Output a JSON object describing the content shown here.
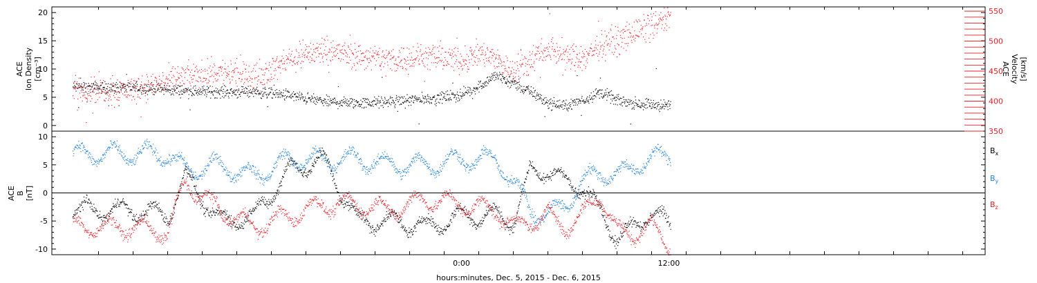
{
  "colors": {
    "black": "#000000",
    "red": "#e8202a",
    "blue": "#1f7fd8"
  },
  "chart_data": [
    {
      "type": "scatter",
      "panel": "top",
      "ylabel_lines": [
        "ACE",
        "Ion Density",
        "[cm⁻³]"
      ],
      "right_label_lines": [
        "ACE",
        "Velocity",
        "[km/s]"
      ],
      "left_ticks": [
        "0",
        "5",
        "10",
        "15",
        "20"
      ],
      "right_ticks": [
        "350",
        "400",
        "450",
        "500",
        "550"
      ],
      "ylim_left": [
        -1,
        21
      ],
      "ylim_right": [
        350,
        557
      ],
      "series": [
        {
          "axis": "left",
          "color": "#000000",
          "trend": [
            [
              -19,
              6.8
            ],
            [
              -16,
              6.2
            ],
            [
              -14,
              6
            ],
            [
              -12,
              6
            ],
            [
              -10,
              5.4
            ],
            [
              -8,
              4.3
            ],
            [
              -6,
              4.0
            ],
            [
              -4,
              4.3
            ],
            [
              -2,
              4.8
            ],
            [
              0,
              5.5
            ],
            [
              1,
              7.0
            ],
            [
              2,
              9.0
            ],
            [
              3,
              7.5
            ],
            [
              4,
              6.0
            ],
            [
              5,
              4.0
            ],
            [
              6,
              3.5
            ],
            [
              7,
              4.5
            ],
            [
              8,
              6.0
            ],
            [
              9,
              4.5
            ],
            [
              10,
              4.0
            ],
            [
              11,
              3.8
            ],
            [
              12,
              3.4
            ]
          ]
        },
        {
          "axis": "right",
          "color": "#e8202a",
          "trend": [
            [
              -19,
              420
            ],
            [
              -16,
              440
            ],
            [
              -14,
              450
            ],
            [
              -12,
              440
            ],
            [
              -10,
              470
            ],
            [
              -8,
              485
            ],
            [
              -6,
              475
            ],
            [
              -4,
              470
            ],
            [
              -2,
              475
            ],
            [
              0,
              470
            ],
            [
              1,
              480
            ],
            [
              2,
              470
            ],
            [
              3,
              450
            ],
            [
              4,
              470
            ],
            [
              5,
              490
            ],
            [
              6,
              475
            ],
            [
              7,
              470
            ],
            [
              8,
              495
            ],
            [
              9,
              500
            ],
            [
              10,
              515
            ],
            [
              11,
              525
            ],
            [
              12,
              540
            ]
          ]
        }
      ]
    },
    {
      "type": "scatter",
      "panel": "bottom",
      "ylabel_lines": [
        "ACE",
        "B",
        "[nT]"
      ],
      "left_ticks": [
        "-10",
        "-5",
        "0",
        "5",
        "10"
      ],
      "ylim": [
        -11,
        11
      ],
      "zero_line": true,
      "legend": [
        {
          "label": "B",
          "sub": "x",
          "color": "#000000"
        },
        {
          "label": "B",
          "sub": "y",
          "color": "#1f7fd8"
        },
        {
          "label": "B",
          "sub": "z",
          "color": "#e8202a"
        }
      ],
      "series": [
        {
          "name": "Bx",
          "color": "#000000",
          "trend": [
            [
              -19,
              -3
            ],
            [
              -17,
              -4
            ],
            [
              -16,
              3
            ],
            [
              -14,
              -5
            ],
            [
              -12,
              -4
            ],
            [
              -10,
              4
            ],
            [
              -8,
              6
            ],
            [
              -6,
              -5
            ],
            [
              -4,
              -5
            ],
            [
              -2,
              -6
            ],
            [
              0,
              -4
            ],
            [
              2,
              -4
            ],
            [
              3,
              -5
            ],
            [
              4,
              4
            ],
            [
              5,
              4
            ],
            [
              6,
              2
            ],
            [
              7,
              1
            ],
            [
              8,
              -3
            ],
            [
              9,
              -8
            ],
            [
              10,
              -6
            ],
            [
              11,
              -3
            ],
            [
              12,
              -6
            ]
          ]
        },
        {
          "name": "By",
          "color": "#1f7fd8",
          "trend": [
            [
              -19,
              7
            ],
            [
              -17,
              7
            ],
            [
              -16,
              4
            ],
            [
              -14,
              5
            ],
            [
              -12,
              3
            ],
            [
              -10,
              6
            ],
            [
              -8,
              6
            ],
            [
              -6,
              6
            ],
            [
              -4,
              5
            ],
            [
              -2,
              5
            ],
            [
              0,
              6
            ],
            [
              2,
              6
            ],
            [
              3,
              2
            ],
            [
              4,
              -3
            ],
            [
              5,
              -4
            ],
            [
              6,
              -2
            ],
            [
              7,
              2
            ],
            [
              8,
              4
            ],
            [
              9,
              3
            ],
            [
              10,
              5
            ],
            [
              11,
              6
            ],
            [
              12,
              7
            ]
          ]
        },
        {
          "name": "Bz",
          "color": "#e8202a",
          "trend": [
            [
              -19,
              -6
            ],
            [
              -17,
              -7
            ],
            [
              -16,
              2
            ],
            [
              -14,
              -3
            ],
            [
              -12,
              -6
            ],
            [
              -10,
              -4
            ],
            [
              -8,
              -2
            ],
            [
              -6,
              -2
            ],
            [
              -4,
              -3
            ],
            [
              -2,
              -1
            ],
            [
              0,
              -2
            ],
            [
              2,
              -3
            ],
            [
              3,
              -6
            ],
            [
              4,
              -5
            ],
            [
              5,
              -4
            ],
            [
              6,
              -6
            ],
            [
              7,
              -4
            ],
            [
              8,
              0
            ],
            [
              9,
              -7
            ],
            [
              10,
              -7
            ],
            [
              11,
              -6
            ],
            [
              12,
              -9
            ]
          ]
        }
      ]
    }
  ],
  "x_axis": {
    "ticks": [
      "0:00",
      "12:00"
    ],
    "xlim_hours": [
      -23.7,
      30.3
    ],
    "label": "hours:minutes, Dec. 5, 2015 - Dec. 6, 2015"
  }
}
